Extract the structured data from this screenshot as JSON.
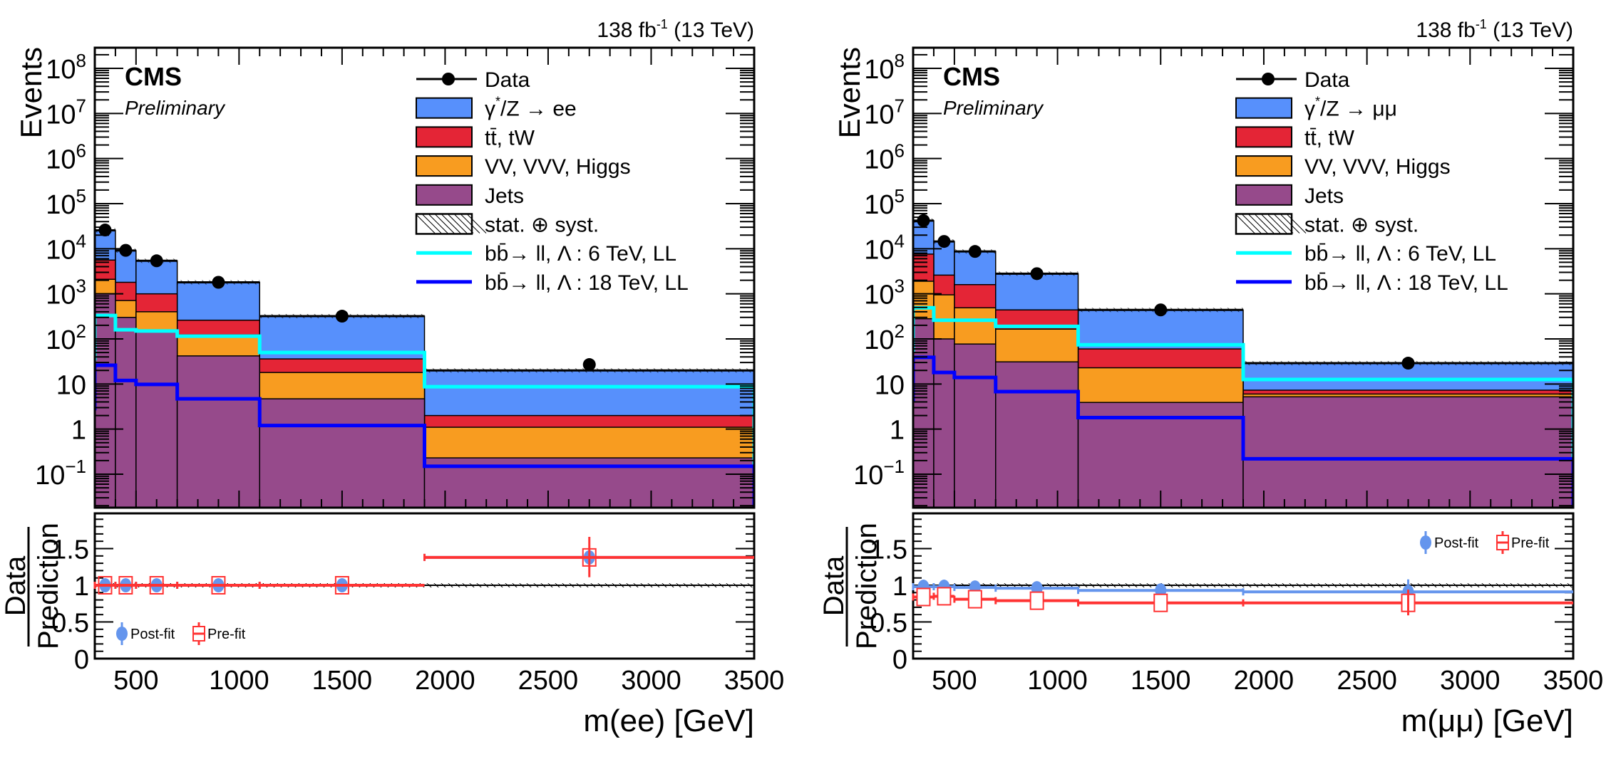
{
  "chart_data": [
    {
      "type": "bar",
      "subtype": "stacked-histogram-with-ratio",
      "channel": "ee",
      "title_right": "138 fb",
      "lumi_exponent": "-1",
      "energy": "(13 TeV)",
      "experiment": "CMS",
      "status": "Preliminary",
      "ylabel": "Events",
      "xlabel": "m(ee) [GeV]",
      "ratio_ylabel_num": "Data",
      "ratio_ylabel_den": "Prediction",
      "yscale": "log",
      "ylim": [
        0.018,
        290000000
      ],
      "xlim": [
        300,
        3500
      ],
      "ratio_ylim": [
        0,
        1.98
      ],
      "y_ticks": [
        "10^-1",
        "1",
        "10",
        "10^2",
        "10^3",
        "10^4",
        "10^5",
        "10^6",
        "10^7",
        "10^8"
      ],
      "x_ticks": [
        "500",
        "1000",
        "1500",
        "2000",
        "2500",
        "3000",
        "3500"
      ],
      "ratio_ticks": [
        "0",
        "0.5",
        "1",
        "1.5"
      ],
      "bin_edges": [
        300,
        400,
        500,
        700,
        1100,
        1900,
        3500
      ],
      "stack_order_bottom_to_top": [
        "Jets",
        "VV, VVV, Higgs",
        "tt, tW",
        "DY"
      ],
      "series": [
        {
          "name": "Jets",
          "key": "jets",
          "values": [
            1000,
            300,
            155,
            42,
            4.7,
            0.23
          ]
        },
        {
          "name": "VV, VVV, Higgs",
          "key": "vv",
          "values": [
            1100,
            410,
            245,
            81,
            13.3,
            0.87
          ]
        },
        {
          "name": "tt, tW",
          "key": "tt",
          "values": [
            3500,
            1090,
            600,
            137,
            18,
            0.9
          ]
        },
        {
          "name": "γ*/Z → ee",
          "key": "dy",
          "values": [
            20000,
            7300,
            4400,
            1540,
            284,
            18
          ]
        }
      ],
      "data_points": {
        "x": [
          350,
          450,
          600,
          900,
          1500,
          2700
        ],
        "y": [
          26000,
          9200,
          5400,
          1800,
          320,
          27
        ]
      },
      "signal_lines": [
        {
          "name": "bb→ll, Λ: 6 TeV, LL",
          "key": "sig6",
          "values": [
            330,
            160,
            150,
            115,
            50,
            8.7
          ]
        },
        {
          "name": "bb→ll, Λ: 18 TeV, LL",
          "key": "sig18",
          "values": [
            26,
            12,
            9.8,
            4.7,
            1.2,
            0.15
          ]
        }
      ],
      "ratio": {
        "postfit": [
          1.0,
          1.0,
          1.0,
          1.0,
          1.0,
          1.38
        ],
        "prefit": [
          1.0,
          1.0,
          1.0,
          1.0,
          1.0,
          1.38
        ],
        "last_bin_error": [
          1.11,
          1.66
        ]
      },
      "ratio_legend": [
        "Post-fit",
        "Pre-fit"
      ],
      "ratio_legend_position": "bottom-left",
      "legend_position": "top-right",
      "legend": [
        {
          "label": "Data",
          "kind": "marker"
        },
        {
          "label": "γ",
          "sup": "*",
          "rest": "/Z → ee",
          "kind": "fill",
          "key": "dy"
        },
        {
          "label": "tt̄, tW",
          "kind": "fill",
          "key": "tt"
        },
        {
          "label": "VV, VVV, Higgs",
          "kind": "fill",
          "key": "vv"
        },
        {
          "label": "Jets",
          "kind": "fill",
          "key": "jets"
        },
        {
          "label": "stat. ⊕ syst.",
          "kind": "hatch"
        },
        {
          "label": "bb̄→ ll, Λ : 6 TeV, LL",
          "kind": "line",
          "key": "sig6"
        },
        {
          "label": "bb̄→ ll, Λ : 18 TeV, LL",
          "kind": "line",
          "key": "sig18"
        }
      ]
    },
    {
      "type": "bar",
      "subtype": "stacked-histogram-with-ratio",
      "channel": "μμ",
      "title_right": "138 fb",
      "lumi_exponent": "-1",
      "energy": "(13 TeV)",
      "experiment": "CMS",
      "status": "Preliminary",
      "ylabel": "Events",
      "xlabel": "m(μμ) [GeV]",
      "ratio_ylabel_num": "Data",
      "ratio_ylabel_den": "Prediction",
      "yscale": "log",
      "ylim": [
        0.018,
        290000000
      ],
      "xlim": [
        300,
        3500
      ],
      "ratio_ylim": [
        0,
        1.98
      ],
      "y_ticks": [
        "10^-1",
        "1",
        "10",
        "10^2",
        "10^3",
        "10^4",
        "10^5",
        "10^6",
        "10^7",
        "10^8"
      ],
      "x_ticks": [
        "500",
        "1000",
        "1500",
        "2000",
        "2500",
        "3000",
        "3500"
      ],
      "ratio_ticks": [
        "0",
        "0.5",
        "1",
        "1.5"
      ],
      "bin_edges": [
        300,
        400,
        500,
        700,
        1100,
        1900,
        3500
      ],
      "stack_order_bottom_to_top": [
        "Jets",
        "VV, VVV, Higgs",
        "tt, tW",
        "DY"
      ],
      "series": [
        {
          "name": "Jets",
          "key": "jets",
          "values": [
            280,
            100,
            77,
            31,
            3.9,
            5.2
          ]
        },
        {
          "name": "VV, VVV, Higgs",
          "key": "vv",
          "values": [
            1620,
            850,
            413,
            134,
            19,
            0.8
          ]
        },
        {
          "name": "tt, tW",
          "key": "tt",
          "values": [
            5700,
            1650,
            1110,
            275,
            37,
            1.3
          ]
        },
        {
          "name": "γ*/Z → μμ",
          "key": "dy",
          "values": [
            34400,
            11900,
            7100,
            2360,
            380,
            21.7
          ]
        }
      ],
      "data_points": {
        "x": [
          350,
          450,
          600,
          900,
          1500,
          2700
        ],
        "y": [
          42000,
          14500,
          8700,
          2800,
          440,
          29
        ]
      },
      "signal_lines": [
        {
          "name": "bb→ll, Λ: 6 TeV, LL",
          "key": "sig6",
          "values": [
            490,
            260,
            260,
            190,
            74,
            12.6
          ]
        },
        {
          "name": "bb→ll, Λ: 18 TeV, LL",
          "key": "sig18",
          "values": [
            39,
            18,
            14,
            6.8,
            1.8,
            0.22
          ]
        }
      ],
      "ratio": {
        "postfit": [
          0.98,
          0.98,
          0.97,
          0.96,
          0.93,
          0.91
        ],
        "prefit": [
          0.84,
          0.85,
          0.81,
          0.79,
          0.76,
          0.76
        ],
        "last_bin_error_postfit": [
          0.74,
          1.08
        ],
        "last_bin_error_prefit": [
          0.59,
          0.94
        ]
      },
      "ratio_legend": [
        "Post-fit",
        "Pre-fit"
      ],
      "ratio_legend_position": "top-right",
      "legend_position": "top-right",
      "legend": [
        {
          "label": "Data",
          "kind": "marker"
        },
        {
          "label": "γ",
          "sup": "*",
          "rest": "/Z → μμ",
          "kind": "fill",
          "key": "dy"
        },
        {
          "label": "tt̄, tW",
          "kind": "fill",
          "key": "tt"
        },
        {
          "label": "VV, VVV, Higgs",
          "kind": "fill",
          "key": "vv"
        },
        {
          "label": "Jets",
          "kind": "fill",
          "key": "jets"
        },
        {
          "label": "stat. ⊕ syst.",
          "kind": "hatch"
        },
        {
          "label": "bb̄→ ll, Λ : 6 TeV, LL",
          "kind": "line",
          "key": "sig6"
        },
        {
          "label": "bb̄→ ll, Λ : 18 TeV, LL",
          "kind": "line",
          "key": "sig18"
        }
      ]
    }
  ],
  "colors": {
    "dy": "#5790fc",
    "tt": "#e42536",
    "vv": "#f89c20",
    "jets": "#964a8b",
    "sig6": "#00ffff",
    "sig18": "#0000ff",
    "postfit": "#6495ed",
    "prefit": "#ff3333",
    "data": "#000000"
  }
}
